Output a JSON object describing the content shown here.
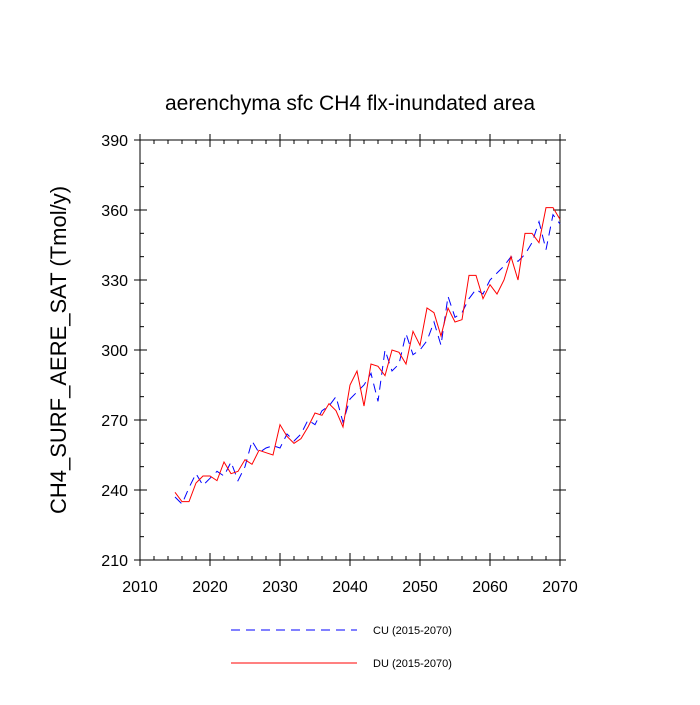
{
  "chart_data": {
    "type": "line",
    "title": "aerenchyma sfc CH4 flx-inundated area",
    "xlabel": "",
    "ylabel": "CH4_SURF_AERE_SAT  (Tmol/y)",
    "xlim": [
      2010,
      2070
    ],
    "ylim": [
      210,
      390
    ],
    "xticks": [
      2010,
      2020,
      2030,
      2040,
      2050,
      2060,
      2070
    ],
    "yticks": [
      210,
      240,
      270,
      300,
      330,
      360,
      390
    ],
    "x_minor_step": 2,
    "y_minor_step": 10,
    "legend_position": "bottom-center",
    "x": [
      2015,
      2016,
      2017,
      2018,
      2019,
      2020,
      2021,
      2022,
      2023,
      2024,
      2025,
      2026,
      2027,
      2028,
      2029,
      2030,
      2031,
      2032,
      2033,
      2034,
      2035,
      2036,
      2037,
      2038,
      2039,
      2040,
      2041,
      2042,
      2043,
      2044,
      2045,
      2046,
      2047,
      2048,
      2049,
      2050,
      2051,
      2052,
      2053,
      2054,
      2055,
      2056,
      2057,
      2058,
      2059,
      2060,
      2061,
      2062,
      2063,
      2064,
      2065,
      2066,
      2067,
      2068,
      2069,
      2070
    ],
    "series": [
      {
        "name": "CU (2015-2070)",
        "color": "#0000ff",
        "dash": "dashed",
        "values": [
          237,
          234,
          241,
          247,
          242,
          245,
          248,
          246,
          252,
          244,
          250,
          261,
          256,
          258,
          259,
          258,
          264,
          261,
          264,
          270,
          268,
          274,
          276,
          280,
          269,
          279,
          282,
          285,
          290,
          278,
          300,
          291,
          294,
          307,
          298,
          300,
          304,
          312,
          302,
          323,
          314,
          316,
          322,
          326,
          324,
          330,
          333,
          336,
          340,
          338,
          341,
          346,
          355,
          343,
          358,
          354
        ]
      },
      {
        "name": "DU (2015-2070)",
        "color": "#ff0000",
        "dash": "solid",
        "values": [
          239,
          235,
          235,
          243,
          246,
          246,
          244,
          252,
          247,
          248,
          253,
          251,
          257,
          256,
          255,
          268,
          263,
          260,
          262,
          267,
          273,
          272,
          277,
          274,
          267,
          285,
          291,
          276,
          294,
          293,
          289,
          300,
          299,
          294,
          308,
          302,
          318,
          316,
          306,
          318,
          312,
          313,
          332,
          332,
          322,
          328,
          324,
          330,
          340,
          330,
          350,
          350,
          346,
          361,
          361,
          356
        ]
      }
    ]
  }
}
